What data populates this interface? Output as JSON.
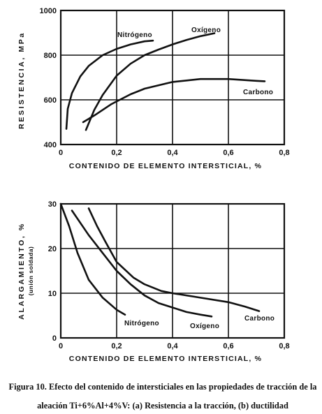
{
  "chart_data": [
    {
      "type": "line",
      "xlabel": "CONTENIDO DE ELEMENTO INTERSTICIAL, %",
      "ylabel": "RESISTENCIA, MPa",
      "x_ticks": [
        "0",
        "0,2",
        "0,4",
        "0,6",
        "0,8"
      ],
      "y_ticks": [
        "400",
        "600",
        "800",
        "1000"
      ],
      "xlim": [
        0,
        0.8
      ],
      "ylim": [
        400,
        1000
      ],
      "grid": true,
      "series": [
        {
          "name": "Nitrógeno",
          "points": [
            [
              0.02,
              470
            ],
            [
              0.025,
              560
            ],
            [
              0.04,
              630
            ],
            [
              0.07,
              705
            ],
            [
              0.1,
              752
            ],
            [
              0.15,
              800
            ],
            [
              0.2,
              828
            ],
            [
              0.25,
              848
            ],
            [
              0.3,
              862
            ],
            [
              0.33,
              865
            ]
          ]
        },
        {
          "name": "Oxígeno",
          "points": [
            [
              0.09,
              465
            ],
            [
              0.12,
              555
            ],
            [
              0.15,
              622
            ],
            [
              0.2,
              708
            ],
            [
              0.25,
              762
            ],
            [
              0.3,
              800
            ],
            [
              0.35,
              825
            ],
            [
              0.4,
              848
            ],
            [
              0.45,
              868
            ],
            [
              0.5,
              885
            ],
            [
              0.55,
              898
            ]
          ]
        },
        {
          "name": "Carbono",
          "points": [
            [
              0.08,
              500
            ],
            [
              0.12,
              530
            ],
            [
              0.18,
              580
            ],
            [
              0.25,
              625
            ],
            [
              0.3,
              650
            ],
            [
              0.4,
              680
            ],
            [
              0.5,
              693
            ],
            [
              0.6,
              693
            ],
            [
              0.7,
              685
            ],
            [
              0.73,
              683
            ]
          ]
        }
      ]
    },
    {
      "type": "line",
      "xlabel": "CONTENIDO DE ELEMENTO INTERSTICIAL, %",
      "ylabel": "ALARGAMIENTO, %",
      "ylabel_sub": "(unión soldada)",
      "x_ticks": [
        "0",
        "0,2",
        "0,4",
        "0,6",
        "0,8"
      ],
      "y_ticks": [
        "0",
        "10",
        "20",
        "30"
      ],
      "xlim": [
        0,
        0.8
      ],
      "ylim": [
        0,
        30
      ],
      "grid": true,
      "series": [
        {
          "name": "Nitrógeno",
          "points": [
            [
              0.0,
              30
            ],
            [
              0.03,
              25
            ],
            [
              0.06,
              19
            ],
            [
              0.1,
              13
            ],
            [
              0.15,
              9
            ],
            [
              0.2,
              6.3
            ],
            [
              0.23,
              5.2
            ]
          ]
        },
        {
          "name": "Oxígeno",
          "points": [
            [
              0.04,
              28.5
            ],
            [
              0.1,
              23
            ],
            [
              0.15,
              19
            ],
            [
              0.2,
              15
            ],
            [
              0.25,
              12
            ],
            [
              0.3,
              9.5
            ],
            [
              0.35,
              7.8
            ],
            [
              0.4,
              6.8
            ],
            [
              0.45,
              5.8
            ],
            [
              0.5,
              5.2
            ],
            [
              0.54,
              4.8
            ]
          ]
        },
        {
          "name": "Carbono",
          "points": [
            [
              0.1,
              29
            ],
            [
              0.13,
              25
            ],
            [
              0.16,
              21.5
            ],
            [
              0.2,
              17
            ],
            [
              0.26,
              13.5
            ],
            [
              0.3,
              12
            ],
            [
              0.36,
              10.5
            ],
            [
              0.4,
              10
            ],
            [
              0.5,
              9
            ],
            [
              0.6,
              8
            ],
            [
              0.66,
              7
            ],
            [
              0.71,
              6
            ]
          ]
        }
      ]
    }
  ],
  "caption": {
    "line1": "Figura 10. Efecto del contenido de intersticiales en las propiedades de tracción de la",
    "line2": "aleación Ti+6%Al+4%V: (a) Resistencia a la tracción, (b) ductilidad"
  }
}
